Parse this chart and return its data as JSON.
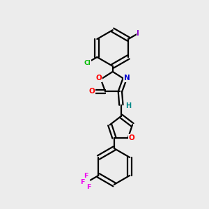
{
  "bg_color": "#ececec",
  "bond_color": "#000000",
  "bond_width": 1.6,
  "atom_colors": {
    "O": "#ff0000",
    "N": "#0000cd",
    "Cl": "#00bb00",
    "I": "#8B00CC",
    "F": "#ee00ee",
    "H": "#008888",
    "C": "#000000"
  },
  "title": ""
}
